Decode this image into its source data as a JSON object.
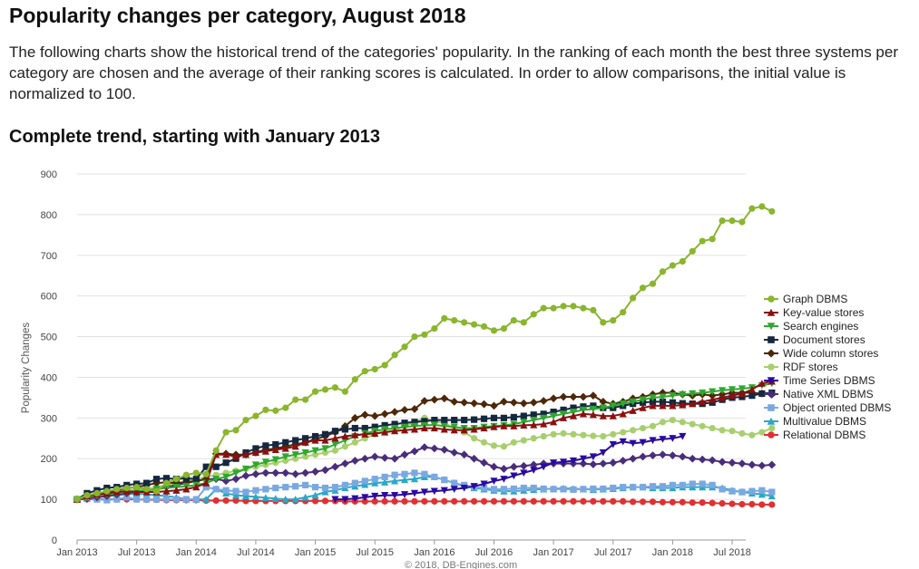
{
  "page": {
    "title": "Popularity changes per category, August 2018",
    "intro": "The following charts show the historical trend of the categories' popularity. In the ranking of each month the best three systems per category are chosen and the average of their ranking scores is calculated. In order to allow comparisons, the initial value is normalized to 100.",
    "section_title": "Complete trend, starting with January 2013"
  },
  "chart_data": {
    "type": "line",
    "ylabel": "Popularity Changes",
    "credit": "© 2018, DB-Engines.com",
    "ylim": [
      0,
      900
    ],
    "yticks": [
      0,
      100,
      200,
      300,
      400,
      500,
      600,
      700,
      800,
      900
    ],
    "xticks": [
      "Jan 2013",
      "Jul 2013",
      "Jan 2014",
      "Jul 2014",
      "Jan 2015",
      "Jul 2015",
      "Jan 2016",
      "Jul 2016",
      "Jan 2017",
      "Jul 2017",
      "Jan 2018",
      "Jul 2018"
    ],
    "x_start": "Jan 2013",
    "x_end": "Aug 2018",
    "legend_position": "right",
    "grid": true,
    "series": [
      {
        "name": "Graph DBMS",
        "color": "#8ab52e",
        "marker": "circle",
        "start": "Jan 2013",
        "values": [
          100,
          110,
          115,
          120,
          125,
          128,
          130,
          125,
          120,
          140,
          150,
          160,
          165,
          162,
          220,
          265,
          270,
          295,
          305,
          320,
          318,
          325,
          345,
          345,
          365,
          370,
          375,
          365,
          395,
          415,
          420,
          430,
          455,
          475,
          500,
          505,
          520,
          545,
          540,
          535,
          530,
          525,
          515,
          520,
          540,
          535,
          555,
          570,
          570,
          575,
          575,
          570,
          565,
          535,
          540,
          560,
          595,
          620,
          630,
          660,
          675,
          685,
          710,
          735,
          740,
          785,
          785,
          782,
          815,
          820,
          808
        ]
      },
      {
        "name": "Key-value stores",
        "color": "#8a1010",
        "marker": "triangle-up",
        "start": "Jan 2013",
        "values": [
          100,
          108,
          112,
          115,
          118,
          120,
          118,
          118,
          118,
          120,
          122,
          125,
          130,
          140,
          210,
          210,
          205,
          210,
          215,
          218,
          222,
          225,
          230,
          240,
          245,
          245,
          250,
          255,
          258,
          260,
          262,
          265,
          268,
          270,
          272,
          275,
          275,
          272,
          270,
          270,
          272,
          275,
          278,
          280,
          280,
          282,
          283,
          285,
          290,
          300,
          305,
          310,
          308,
          305,
          305,
          310,
          318,
          325,
          330,
          330,
          330,
          332,
          335,
          340,
          345,
          350,
          355,
          360,
          370,
          385,
          390
        ]
      },
      {
        "name": "Search engines",
        "color": "#2ea82e",
        "marker": "triangle-down",
        "start": "Jan 2013",
        "values": [
          100,
          105,
          110,
          112,
          115,
          118,
          120,
          122,
          125,
          128,
          130,
          132,
          135,
          140,
          150,
          155,
          165,
          175,
          185,
          192,
          198,
          205,
          210,
          215,
          220,
          225,
          235,
          245,
          255,
          262,
          268,
          272,
          275,
          278,
          280,
          282,
          283,
          280,
          278,
          275,
          275,
          278,
          280,
          282,
          285,
          290,
          295,
          300,
          305,
          310,
          315,
          320,
          322,
          325,
          330,
          335,
          340,
          345,
          350,
          352,
          355,
          358,
          360,
          362,
          365,
          368,
          370,
          372,
          375,
          380,
          385
        ]
      },
      {
        "name": "Document stores",
        "color": "#142840",
        "marker": "square",
        "start": "Jan 2013",
        "values": [
          100,
          115,
          122,
          128,
          130,
          135,
          138,
          140,
          150,
          152,
          150,
          152,
          150,
          180,
          180,
          190,
          200,
          215,
          225,
          232,
          235,
          240,
          245,
          250,
          255,
          260,
          268,
          272,
          275,
          275,
          278,
          282,
          285,
          288,
          290,
          292,
          295,
          295,
          295,
          295,
          296,
          298,
          300,
          300,
          302,
          305,
          308,
          310,
          315,
          320,
          325,
          328,
          330,
          325,
          325,
          330,
          335,
          338,
          340,
          340,
          338,
          336,
          335,
          335,
          338,
          345,
          350,
          352,
          355,
          360,
          362
        ]
      },
      {
        "name": "Wide column stores",
        "color": "#4d2808",
        "marker": "diamond",
        "start": "Jan 2013",
        "values": [
          100,
          108,
          112,
          118,
          122,
          128,
          130,
          135,
          140,
          142,
          140,
          142,
          145,
          150,
          212,
          212,
          210,
          210,
          215,
          222,
          225,
          230,
          235,
          240,
          248,
          255,
          265,
          280,
          300,
          308,
          305,
          310,
          315,
          320,
          322,
          342,
          345,
          348,
          340,
          338,
          336,
          334,
          330,
          340,
          338,
          336,
          338,
          342,
          348,
          352,
          352,
          352,
          355,
          340,
          335,
          340,
          348,
          352,
          358,
          362,
          362,
          358,
          355,
          358,
          355,
          358,
          362,
          362,
          362,
          360,
          358
        ]
      },
      {
        "name": "RDF stores",
        "color": "#a8cf6e",
        "marker": "circle",
        "start": "Jan 2013",
        "values": [
          100,
          105,
          110,
          115,
          120,
          122,
          125,
          125,
          130,
          135,
          140,
          145,
          150,
          155,
          160,
          165,
          170,
          175,
          180,
          185,
          190,
          195,
          200,
          205,
          210,
          215,
          220,
          230,
          240,
          250,
          260,
          265,
          270,
          280,
          290,
          300,
          292,
          288,
          275,
          265,
          250,
          240,
          232,
          230,
          240,
          245,
          250,
          255,
          260,
          262,
          260,
          258,
          256,
          255,
          260,
          265,
          270,
          275,
          280,
          290,
          295,
          290,
          285,
          280,
          275,
          270,
          268,
          262,
          258,
          265,
          275
        ]
      },
      {
        "name": "Time Series DBMS",
        "color": "#2a0aa0",
        "marker": "triangle-down",
        "start": "Mar 2015",
        "values": [
          100,
          100,
          102,
          105,
          108,
          110,
          110,
          112,
          115,
          118,
          120,
          122,
          125,
          128,
          132,
          138,
          145,
          150,
          158,
          165,
          172,
          180,
          190,
          192,
          195,
          200,
          205,
          215,
          235,
          242,
          238,
          240,
          245,
          248,
          250,
          255
        ]
      },
      {
        "name": "Native XML DBMS",
        "color": "#4a2d7a",
        "marker": "diamond",
        "start": "Jan 2013",
        "values": [
          100,
          102,
          105,
          108,
          112,
          115,
          118,
          120,
          125,
          130,
          135,
          140,
          145,
          150,
          150,
          145,
          150,
          158,
          162,
          165,
          165,
          165,
          162,
          165,
          168,
          172,
          180,
          188,
          195,
          200,
          205,
          202,
          200,
          210,
          218,
          228,
          225,
          222,
          215,
          210,
          200,
          190,
          180,
          175,
          180,
          182,
          185,
          188,
          188,
          188,
          188,
          188,
          186,
          188,
          190,
          195,
          200,
          205,
          208,
          210,
          208,
          205,
          200,
          198,
          196,
          192,
          190,
          188,
          185,
          183,
          185
        ]
      },
      {
        "name": "Object oriented DBMS",
        "color": "#7aa8e0",
        "marker": "square",
        "start": "Jan 2013",
        "values": [
          100,
          102,
          100,
          98,
          100,
          105,
          100,
          100,
          100,
          100,
          100,
          100,
          100,
          130,
          125,
          122,
          120,
          118,
          122,
          125,
          128,
          130,
          132,
          135,
          130,
          128,
          130,
          135,
          140,
          145,
          150,
          155,
          160,
          162,
          165,
          162,
          155,
          148,
          140,
          135,
          130,
          128,
          125,
          125,
          126,
          128,
          128,
          126,
          125,
          125,
          124,
          125,
          126,
          126,
          128,
          130,
          130,
          130,
          132,
          132,
          135,
          135,
          138,
          138,
          135,
          125,
          120,
          118,
          120,
          122,
          118
        ]
      },
      {
        "name": "Multivalue DBMS",
        "color": "#2aa8c8",
        "marker": "triangle-up",
        "start": "Jan 2013",
        "values": [
          100,
          102,
          105,
          108,
          110,
          112,
          115,
          112,
          110,
          108,
          105,
          100,
          100,
          100,
          125,
          115,
          110,
          108,
          106,
          104,
          102,
          100,
          100,
          105,
          110,
          118,
          122,
          128,
          132,
          136,
          140,
          142,
          145,
          148,
          150,
          155,
          155,
          148,
          140,
          133,
          128,
          125,
          122,
          120,
          120,
          122,
          124,
          125,
          126,
          127,
          126,
          125,
          124,
          125,
          126,
          128,
          130,
          130,
          128,
          128,
          128,
          130,
          130,
          130,
          130,
          128,
          122,
          118,
          115,
          112,
          108
        ]
      },
      {
        "name": "Relational DBMS",
        "color": "#e03030",
        "marker": "circle",
        "start": "Jan 2013",
        "values": [
          100,
          100,
          100,
          100,
          100,
          100,
          100,
          99,
          99,
          98,
          98,
          98,
          98,
          97,
          97,
          97,
          97,
          96,
          96,
          96,
          96,
          96,
          96,
          96,
          96,
          96,
          96,
          95,
          95,
          95,
          95,
          95,
          95,
          95,
          95,
          95,
          95,
          95,
          95,
          95,
          95,
          95,
          95,
          95,
          95,
          95,
          95,
          95,
          95,
          95,
          95,
          95,
          95,
          95,
          95,
          95,
          94,
          94,
          94,
          93,
          93,
          93,
          92,
          92,
          91,
          90,
          89,
          88,
          88,
          87,
          87
        ]
      }
    ]
  }
}
